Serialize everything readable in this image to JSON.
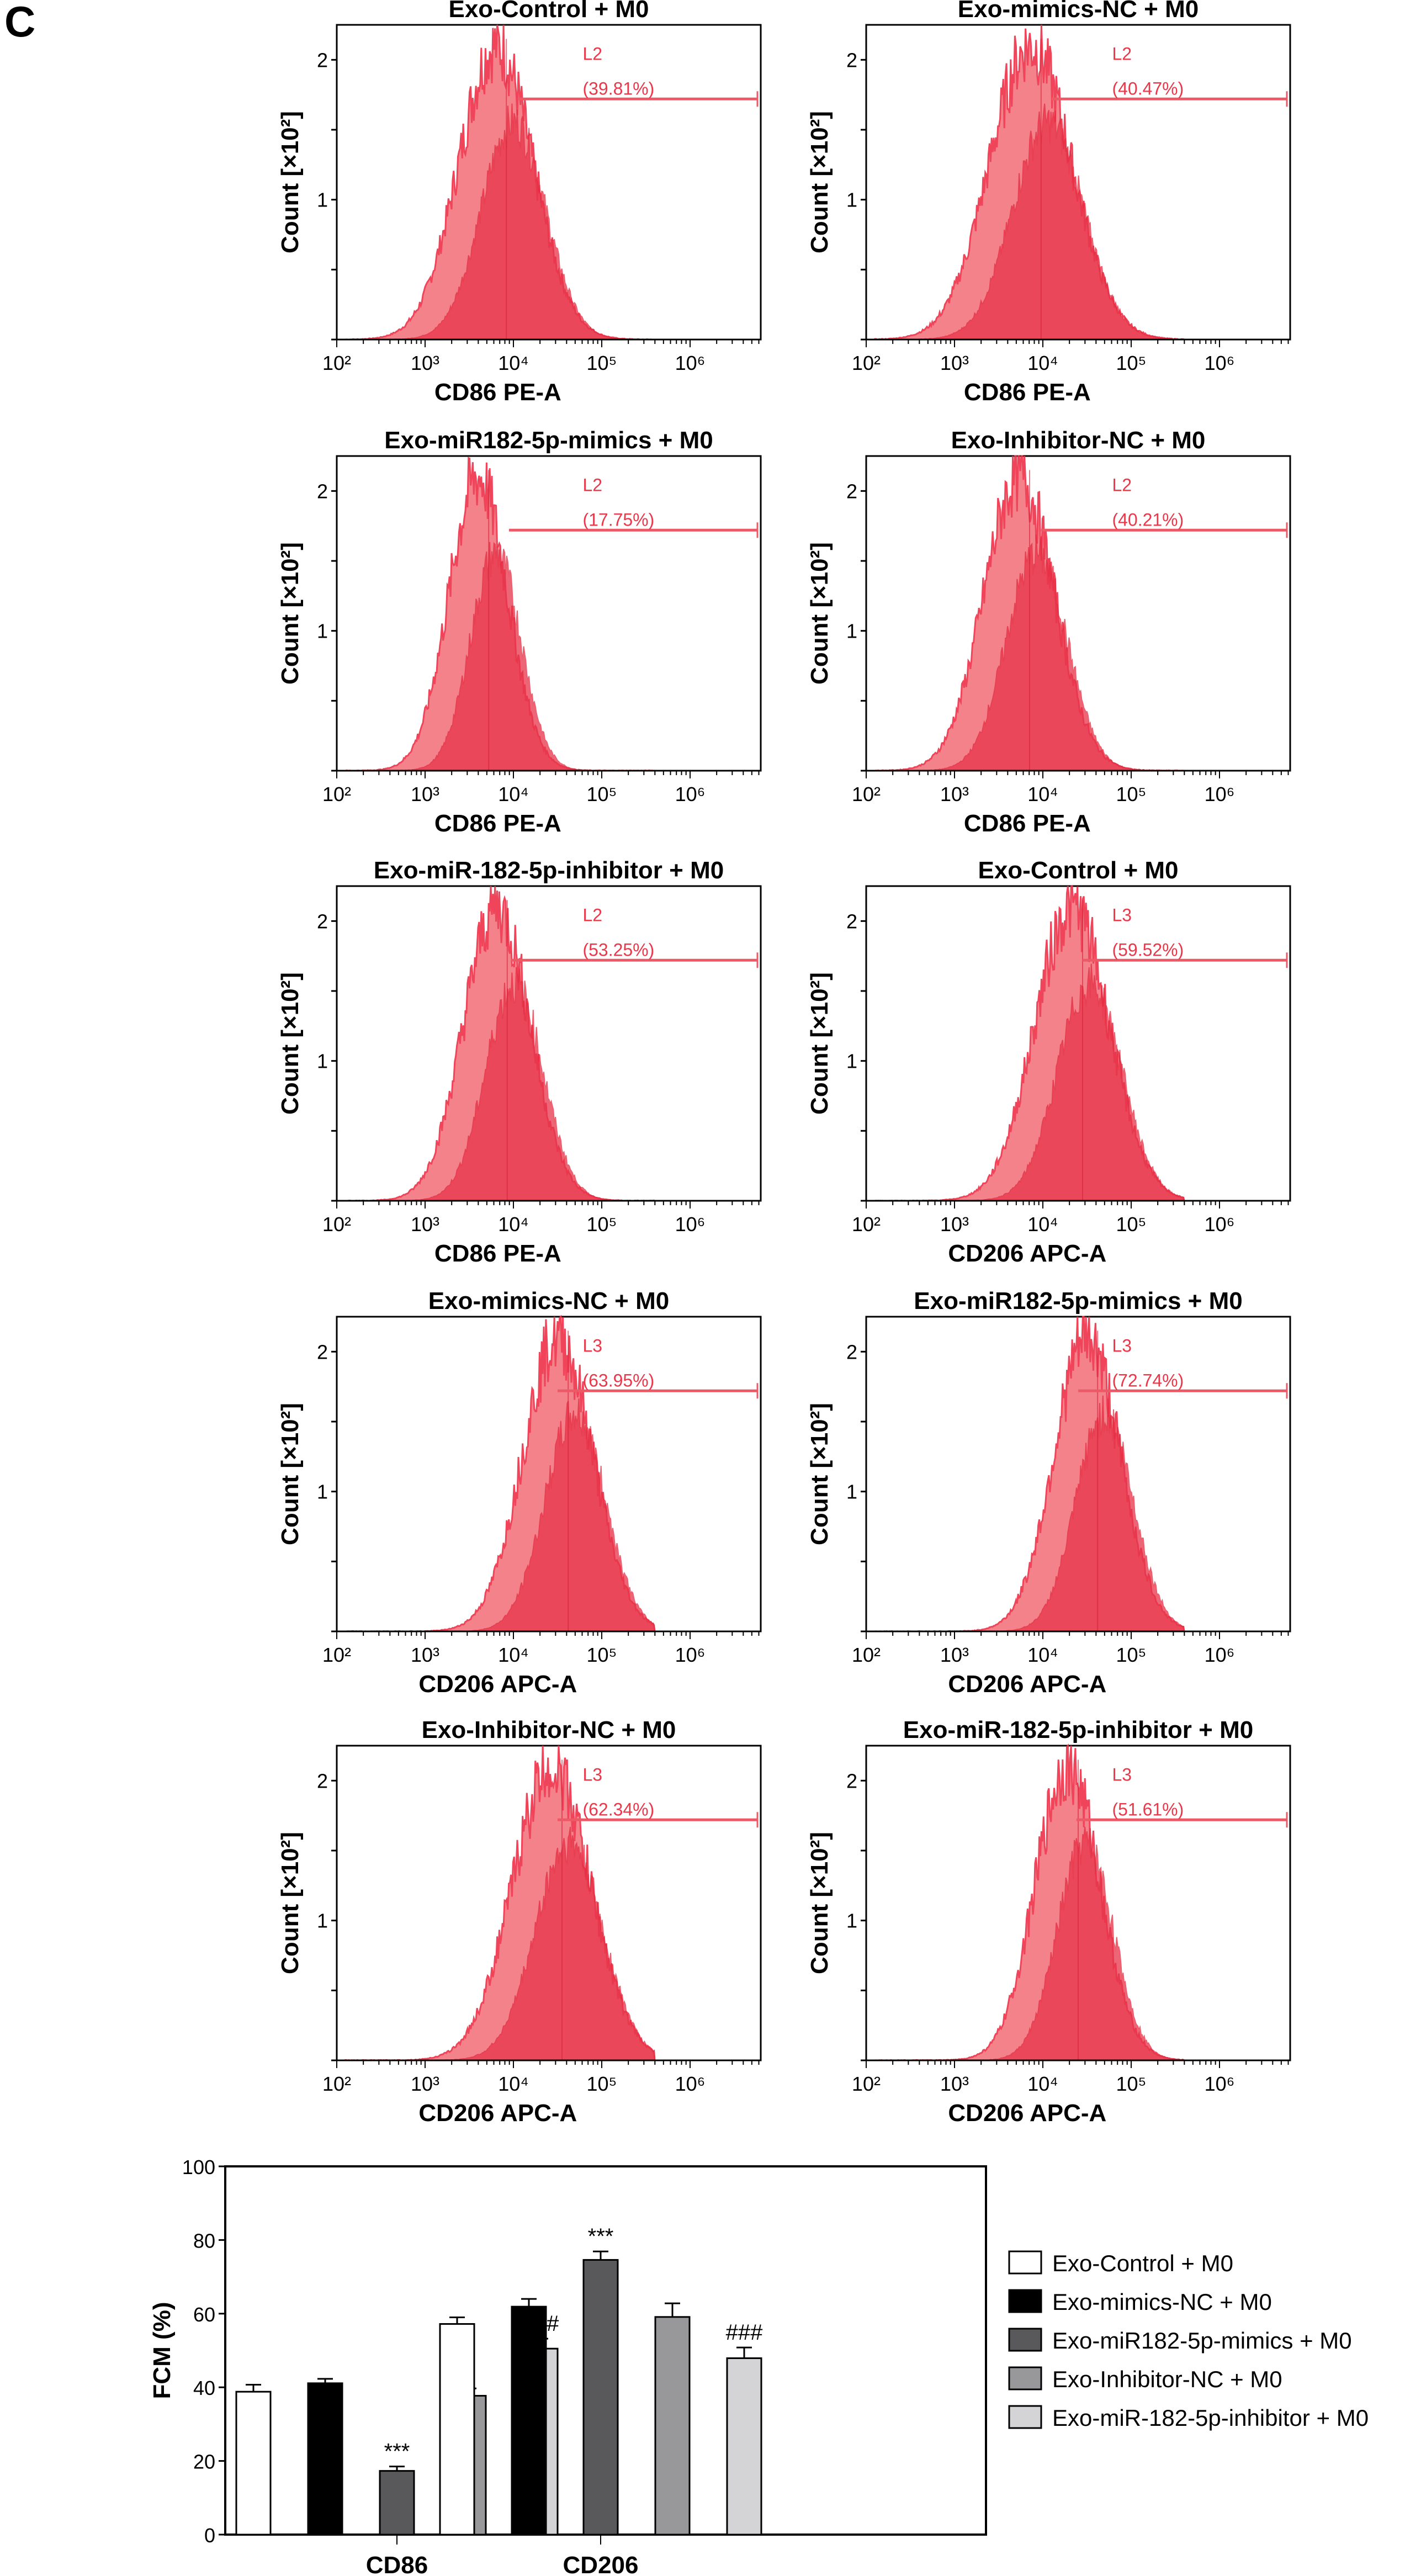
{
  "figure": {
    "panel_letter": "C"
  },
  "histograms": {
    "y_axis_label": "Count [×10²]",
    "y_ticks": [
      "1",
      "2"
    ],
    "x_ticks": [
      "10²",
      "10³",
      "10⁴",
      "10⁵",
      "10⁶"
    ],
    "colors": {
      "fill_light": "#f2757f",
      "fill_dark": "#e8344a",
      "gate": "#ec5a68"
    },
    "panels": [
      {
        "title": "Exo-Control + M0",
        "xlabel": "CD86 PE-A",
        "gate_label": "L2",
        "gate_pct": "(39.81%)",
        "peak_log": 3.92,
        "spread": 0.38,
        "gate_start_log": 4.05
      },
      {
        "title": "Exo-mimics-NC + M0",
        "xlabel": "CD86 PE-A",
        "gate_label": "L2",
        "gate_pct": "(40.47%)",
        "peak_log": 3.98,
        "spread": 0.42,
        "gate_start_log": 4.1
      },
      {
        "title": "Exo-miR182-5p-mimics + M0",
        "xlabel": "CD86 PE-A",
        "gate_label": "L2",
        "gate_pct": "(17.75%)",
        "peak_log": 3.72,
        "spread": 0.3,
        "gate_start_log": 3.95
      },
      {
        "title": "Exo-Inhibitor-NC + M0",
        "xlabel": "CD86 PE-A",
        "gate_label": "L2",
        "gate_pct": "(40.21%)",
        "peak_log": 3.85,
        "spread": 0.36,
        "gate_start_log": 3.98
      },
      {
        "title": "Exo-miR-182-5p-inhibitor + M0",
        "xlabel": "CD86 PE-A",
        "gate_label": "L2",
        "gate_pct": "(53.25%)",
        "peak_log": 3.93,
        "spread": 0.34,
        "gate_start_log": 3.97
      },
      {
        "title": "Exo-Control + M0",
        "xlabel": "CD206 APC-A",
        "gate_label": "L3",
        "gate_pct": "(59.52%)",
        "peak_log": 4.45,
        "spread": 0.38,
        "gate_start_log": 4.45
      },
      {
        "title": "Exo-mimics-NC + M0",
        "xlabel": "CD206 APC-A",
        "gate_label": "L3",
        "gate_pct": "(63.95%)",
        "peak_log": 4.62,
        "spread": 0.36,
        "gate_start_log": 4.5
      },
      {
        "title": "Exo-miR182-5p-mimics + M0",
        "xlabel": "CD206 APC-A",
        "gate_label": "L3",
        "gate_pct": "(72.74%)",
        "peak_log": 4.62,
        "spread": 0.34,
        "gate_start_log": 4.4
      },
      {
        "title": "Exo-Inhibitor-NC + M0",
        "xlabel": "CD206 APC-A",
        "gate_label": "L3",
        "gate_pct": "(62.34%)",
        "peak_log": 4.55,
        "spread": 0.4,
        "gate_start_log": 4.5
      },
      {
        "title": "Exo-miR-182-5p-inhibitor + M0",
        "xlabel": "CD206 APC-A",
        "gate_label": "L3",
        "gate_pct": "(51.61%)",
        "peak_log": 4.4,
        "spread": 0.33,
        "gate_start_log": 4.38
      }
    ]
  },
  "chart_data": {
    "type": "bar",
    "title": "",
    "xlabel": "",
    "ylabel": "FCM (%)",
    "ylim": [
      0,
      100
    ],
    "yticks": [
      0,
      20,
      40,
      60,
      80,
      100
    ],
    "categories": [
      "CD86",
      "CD206"
    ],
    "legend_position": "right",
    "series": [
      {
        "name": "Exo-Control + M0",
        "color": "#ffffff",
        "values": [
          38.8,
          57.2
        ],
        "errors": [
          1.9,
          1.8
        ],
        "annotations": [
          "",
          ""
        ]
      },
      {
        "name": "Exo-mimics-NC + M0",
        "color": "#000000",
        "values": [
          41.1,
          61.9
        ],
        "errors": [
          1.2,
          2.1
        ],
        "annotations": [
          "",
          ""
        ]
      },
      {
        "name": "Exo-miR182-5p-mimics + M0",
        "color": "#59595b",
        "values": [
          17.3,
          74.6
        ],
        "errors": [
          1.2,
          2.3
        ],
        "annotations": [
          "***",
          "***"
        ]
      },
      {
        "name": "Exo-Inhibitor-NC + M0",
        "color": "#98989b",
        "values": [
          37.7,
          59.1
        ],
        "errors": [
          2.0,
          3.7
        ],
        "annotations": [
          "",
          ""
        ]
      },
      {
        "name": "Exo-miR-182-5p-inhibitor + M0",
        "color": "#d4d4d6",
        "values": [
          50.5,
          47.9
        ],
        "errors": [
          2.7,
          2.9
        ],
        "annotations": [
          "###",
          "###"
        ]
      }
    ]
  }
}
